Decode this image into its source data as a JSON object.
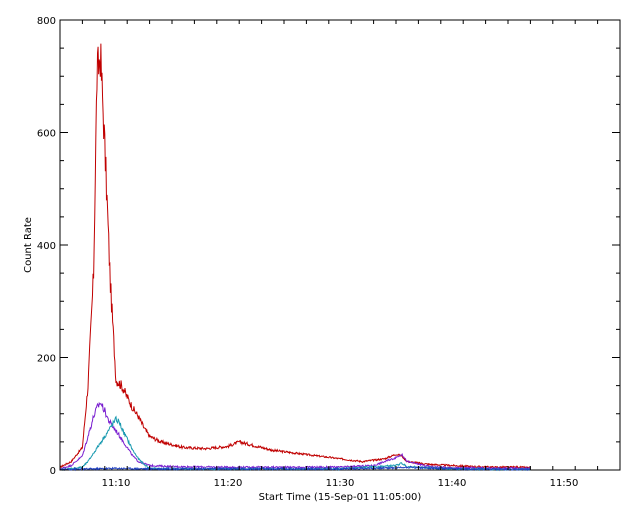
{
  "chart_data": {
    "type": "line",
    "xlabel": "Start Time (15-Sep-01 11:05:00)",
    "ylabel": "Count Rate",
    "xlim": [
      "11:05",
      "11:55"
    ],
    "ylim": [
      0,
      800
    ],
    "x_ticks": [
      "11:10",
      "11:20",
      "11:30",
      "11:40",
      "11:50"
    ],
    "y_ticks": [
      0,
      200,
      400,
      600,
      800
    ],
    "grid": false,
    "series": [
      {
        "color": "#c00000",
        "x": [
          "11:05",
          "11:06",
          "11:07",
          "11:07.5",
          "11:08",
          "11:08.3",
          "11:08.6",
          "11:08.9",
          "11:09.2",
          "11:09.5",
          "11:09.8",
          "11:10",
          "11:10.5",
          "11:11",
          "11:11.5",
          "11:12",
          "11:12.5",
          "11:13",
          "11:14",
          "11:15",
          "11:16",
          "11:18",
          "11:20",
          "11:21",
          "11:22",
          "11:24",
          "11:26",
          "11:28",
          "11:30",
          "11:32",
          "11:34",
          "11:35",
          "11:35.5",
          "11:36",
          "11:38",
          "11:40",
          "11:42",
          "11:44",
          "11:46",
          "11:47"
        ],
        "values": [
          5,
          15,
          40,
          150,
          350,
          700,
          740,
          620,
          480,
          330,
          230,
          160,
          150,
          130,
          110,
          95,
          75,
          60,
          50,
          45,
          40,
          38,
          42,
          50,
          45,
          35,
          30,
          25,
          20,
          15,
          20,
          28,
          25,
          15,
          10,
          8,
          6,
          5,
          5,
          4
        ]
      },
      {
        "color": "#7a1fd0",
        "x": [
          "11:05",
          "11:06",
          "11:07",
          "11:07.5",
          "11:08",
          "11:08.3",
          "11:08.6",
          "11:09",
          "11:09.3",
          "11:09.6",
          "11:10",
          "11:10.5",
          "11:11",
          "11:11.5",
          "11:12",
          "11:13",
          "11:15",
          "11:20",
          "11:25",
          "11:30",
          "11:33",
          "11:35",
          "11:35.5",
          "11:36",
          "11:38",
          "11:40",
          "11:45",
          "11:47"
        ],
        "values": [
          2,
          8,
          25,
          60,
          95,
          110,
          120,
          105,
          90,
          80,
          70,
          55,
          40,
          25,
          15,
          8,
          6,
          5,
          5,
          5,
          8,
          22,
          28,
          15,
          6,
          4,
          3,
          3
        ]
      },
      {
        "color": "#1a9ab0",
        "x": [
          "11:05",
          "11:07",
          "11:07.5",
          "11:08",
          "11:08.5",
          "11:09",
          "11:09.5",
          "11:10",
          "11:10.3",
          "11:10.6",
          "11:11",
          "11:11.5",
          "11:12",
          "11:12.5",
          "11:13",
          "11:15",
          "11:20",
          "11:30",
          "11:35",
          "11:35.5",
          "11:36",
          "11:40",
          "11:45",
          "11:47"
        ],
        "values": [
          0,
          5,
          15,
          30,
          45,
          60,
          75,
          90,
          85,
          70,
          55,
          35,
          20,
          10,
          3,
          2,
          2,
          2,
          8,
          12,
          6,
          2,
          1,
          1
        ]
      },
      {
        "color": "#2040c0",
        "x": [
          "11:05",
          "11:08",
          "11:10",
          "11:13",
          "11:15",
          "11:20",
          "11:25",
          "11:30",
          "11:35",
          "11:36",
          "11:40",
          "11:45",
          "11:47"
        ],
        "values": [
          1,
          2,
          3,
          2,
          2,
          2,
          2,
          2,
          4,
          5,
          2,
          1,
          1
        ]
      }
    ]
  }
}
